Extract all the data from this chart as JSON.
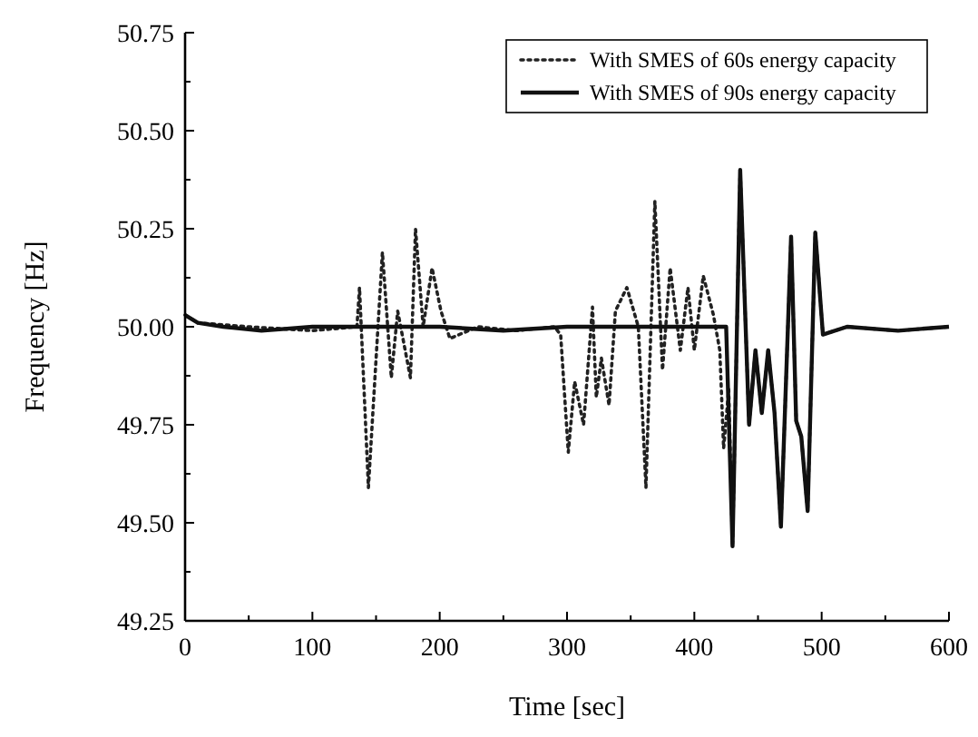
{
  "chart_data": {
    "type": "line",
    "xlabel": "Time [sec]",
    "ylabel": "Frequency [Hz]",
    "xlim": [
      0,
      600
    ],
    "ylim": [
      49.25,
      50.75
    ],
    "xticks": [
      0,
      {
        "value": 50,
        "label": null
      },
      100,
      {
        "value": 150,
        "label": null
      },
      200,
      {
        "value": 250,
        "label": null
      },
      300,
      {
        "value": 350,
        "label": null
      },
      400,
      {
        "value": 450,
        "label": null
      },
      500,
      {
        "value": 550,
        "label": null
      },
      600
    ],
    "yticks": [
      {
        "value": 49.25,
        "label": "49.25"
      },
      {
        "value": 49.375,
        "label": null
      },
      {
        "value": 49.5,
        "label": "49.50"
      },
      {
        "value": 49.625,
        "label": null
      },
      {
        "value": 49.75,
        "label": "49.75"
      },
      {
        "value": 49.875,
        "label": null
      },
      {
        "value": 50,
        "label": "50.00"
      },
      {
        "value": 50.125,
        "label": null
      },
      {
        "value": 50.25,
        "label": "50.25"
      },
      {
        "value": 50.375,
        "label": null
      },
      {
        "value": 50.5,
        "label": "50.50"
      },
      {
        "value": 50.625,
        "label": null
      },
      {
        "value": 50.75,
        "label": "50.75"
      }
    ],
    "grid": false,
    "legend": "top right",
    "series": [
      {
        "name": "With SMES of 60s energy capacity",
        "color": "#222222",
        "line_style": "dotted",
        "x": [
          0,
          10,
          50,
          100,
          135,
          137,
          144,
          155,
          162,
          167,
          177,
          181,
          187,
          194,
          201,
          208,
          230,
          260,
          290,
          295,
          301,
          306,
          313,
          320,
          323,
          327,
          333,
          338,
          347,
          356,
          362,
          369,
          375,
          381,
          389,
          395,
          400,
          407,
          415,
          420,
          423,
          427,
          430,
          436,
          443,
          448,
          453,
          458,
          463,
          468,
          476,
          480,
          484,
          489,
          495,
          501,
          520,
          560,
          600
        ],
        "values": [
          50.03,
          50.01,
          50.0,
          49.99,
          50.0,
          50.1,
          49.59,
          50.19,
          49.87,
          50.04,
          49.87,
          50.25,
          50.0,
          50.15,
          50.04,
          49.97,
          50.0,
          49.99,
          50.0,
          49.98,
          49.68,
          49.86,
          49.75,
          50.05,
          49.82,
          49.92,
          49.8,
          50.04,
          50.1,
          50.0,
          49.59,
          50.32,
          49.89,
          50.15,
          49.94,
          50.1,
          49.94,
          50.13,
          50.03,
          49.94,
          49.69,
          49.84,
          49.44,
          50.4,
          49.75,
          49.94,
          49.78,
          49.94,
          49.78,
          49.49,
          50.23,
          49.76,
          49.72,
          49.53,
          50.24,
          49.98,
          50.0,
          49.99,
          50.0
        ]
      },
      {
        "name": "With SMES of 90s energy capacity",
        "color": "#111111",
        "line_style": "solid",
        "x": [
          0,
          10,
          30,
          60,
          100,
          150,
          200,
          250,
          300,
          350,
          400,
          425,
          430,
          436,
          443,
          448,
          453,
          458,
          463,
          468,
          476,
          480,
          484,
          489,
          495,
          501,
          520,
          560,
          600
        ],
        "values": [
          50.03,
          50.01,
          50.0,
          49.99,
          50.0,
          50.0,
          50.0,
          49.99,
          50.0,
          50.0,
          50.0,
          50.0,
          49.44,
          50.4,
          49.75,
          49.94,
          49.78,
          49.94,
          49.78,
          49.49,
          50.23,
          49.76,
          49.72,
          49.53,
          50.24,
          49.98,
          50.0,
          49.99,
          50.0
        ]
      }
    ]
  }
}
